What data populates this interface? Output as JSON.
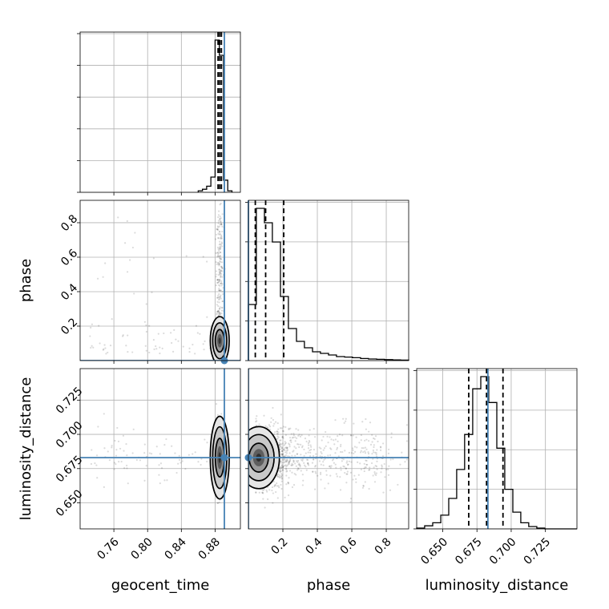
{
  "chart_data": {
    "type": "corner",
    "parameters": [
      "geocent_time",
      "phase",
      "luminosity_distance"
    ],
    "truths": {
      "geocent_time": 0.891,
      "phase": 0.0,
      "luminosity_distance": 0.683
    },
    "quantiles": {
      "geocent_time": [
        0.8835,
        0.8855,
        0.8875
      ],
      "phase": [
        0.04,
        0.1,
        0.205
      ],
      "luminosity_distance": [
        0.669,
        0.682,
        0.694
      ]
    },
    "ranges": {
      "geocent_time": [
        0.72,
        0.91
      ],
      "phase": [
        0.0,
        0.93
      ],
      "luminosity_distance": [
        0.631,
        0.748
      ]
    },
    "ticks": {
      "geocent_time": [
        "0.76",
        "0.80",
        "0.84",
        "0.88"
      ],
      "phase": [
        "0.2",
        "0.4",
        "0.6",
        "0.8"
      ],
      "luminosity_distance": [
        "0.650",
        "0.675",
        "0.700",
        "0.725"
      ]
    },
    "marginals": {
      "geocent_time": {
        "bins": [
          0.86,
          0.865,
          0.87,
          0.875,
          0.88,
          0.885,
          0.89,
          0.895,
          0.9
        ],
        "counts": [
          1,
          2,
          4,
          10,
          100,
          90,
          8,
          1
        ]
      },
      "phase": {
        "bins": [
          0.0,
          0.046,
          0.093,
          0.139,
          0.186,
          0.232,
          0.279,
          0.325,
          0.372,
          0.418,
          0.465,
          0.511,
          0.558,
          0.604,
          0.651,
          0.697,
          0.744,
          0.79,
          0.837,
          0.883,
          0.93
        ],
        "counts": [
          0.35,
          0.95,
          0.86,
          0.74,
          0.4,
          0.2,
          0.12,
          0.08,
          0.055,
          0.045,
          0.035,
          0.025,
          0.022,
          0.018,
          0.013,
          0.01,
          0.008,
          0.006,
          0.004,
          0.003
        ]
      },
      "luminosity_distance": {
        "bins": [
          0.631,
          0.6368,
          0.6427,
          0.6486,
          0.6544,
          0.6602,
          0.666,
          0.6719,
          0.6778,
          0.6836,
          0.6895,
          0.6953,
          0.7012,
          0.707,
          0.7128,
          0.7187,
          0.7245,
          0.7304,
          0.7362,
          0.7421,
          0.748
        ],
        "counts": [
          0.005,
          0.02,
          0.04,
          0.09,
          0.2,
          0.39,
          0.62,
          0.92,
          1.0,
          0.83,
          0.53,
          0.26,
          0.11,
          0.04,
          0.015,
          0.005,
          0.0,
          0.0,
          0.0,
          0.0
        ]
      }
    }
  }
}
